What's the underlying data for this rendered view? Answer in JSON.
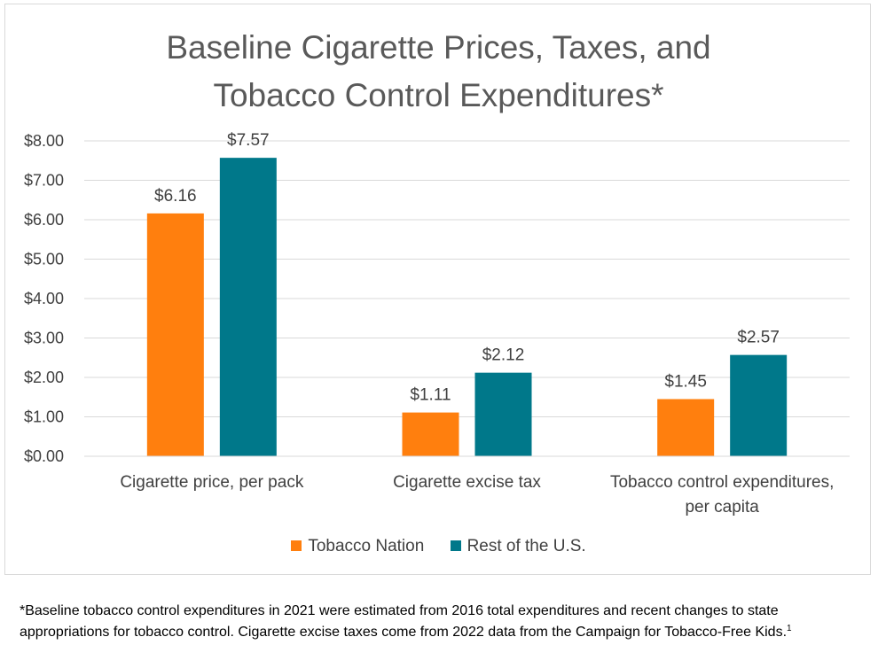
{
  "chart_data": {
    "type": "bar",
    "title_lines": [
      "Baseline Cigarette Prices, Taxes, and",
      "Tobacco Control Expenditures*"
    ],
    "categories": [
      [
        "Cigarette price, per pack"
      ],
      [
        "Cigarette excise tax"
      ],
      [
        "Tobacco control expenditures,",
        "per capita"
      ]
    ],
    "series": [
      {
        "name": "Tobacco Nation",
        "color": "#ff7f0e",
        "values": [
          6.16,
          1.11,
          1.45
        ],
        "labels": [
          "$6.16",
          "$1.11",
          "$1.45"
        ]
      },
      {
        "name": "Rest of the U.S.",
        "color": "#00788a",
        "values": [
          7.57,
          2.12,
          2.57
        ],
        "labels": [
          "$7.57",
          "$2.12",
          "$2.57"
        ]
      }
    ],
    "yticks": [
      "$0.00",
      "$1.00",
      "$2.00",
      "$3.00",
      "$4.00",
      "$5.00",
      "$6.00",
      "$7.00",
      "$8.00"
    ],
    "ylim": [
      0,
      8
    ],
    "grid": true,
    "legend_position": "bottom"
  },
  "footnote": {
    "text": "*Baseline tobacco control expenditures in 2021 were estimated from 2016 total expenditures and recent changes to state appropriations for tobacco control. Cigarette excise taxes come from 2022 data from the Campaign for Tobacco-Free Kids.",
    "superscript": "1"
  }
}
